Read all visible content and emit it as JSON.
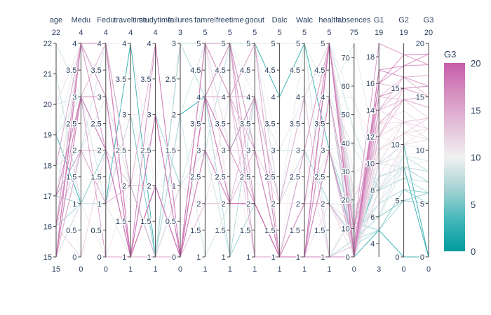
{
  "chart_data": {
    "type": "parallel_coordinates",
    "color_by": "G3",
    "colorscale": [
      "#009B9E",
      "#42B7B9",
      "#A7D3D4",
      "#F1F1F1",
      "#E4C1D9",
      "#D691C1",
      "#C75DAB"
    ],
    "colorscale_note_values": [
      0,
      20
    ],
    "colorbar": {
      "title": "G3",
      "ticks": [
        0,
        5,
        10,
        15,
        20
      ],
      "range": [
        0,
        20
      ]
    },
    "dimensions": [
      {
        "name": "age",
        "range": [
          15,
          22
        ],
        "max_label": "22",
        "min_label": "15",
        "ticks": [
          "15",
          "16",
          "17",
          "18",
          "19",
          "20",
          "21",
          "22"
        ]
      },
      {
        "name": "Medu",
        "range": [
          0,
          4
        ],
        "max_label": "4",
        "min_label": "0",
        "ticks": [
          "0",
          "0.5",
          "1",
          "1.5",
          "2",
          "2.5",
          "3",
          "3.5",
          "4"
        ]
      },
      {
        "name": "Fedu",
        "range": [
          0,
          4
        ],
        "max_label": "4",
        "min_label": "0",
        "ticks": [
          "0",
          "0.5",
          "1",
          "1.5",
          "2",
          "2.5",
          "3",
          "3.5",
          "4"
        ]
      },
      {
        "name": "traveltime",
        "range": [
          1,
          4
        ],
        "max_label": "4",
        "min_label": "1",
        "ticks": [
          "1",
          "1.5",
          "2",
          "2.5",
          "3",
          "3.5",
          "4"
        ]
      },
      {
        "name": "studytime",
        "range": [
          1,
          4
        ],
        "max_label": "4",
        "min_label": "1",
        "ticks": [
          "1",
          "1.5",
          "2",
          "2.5",
          "3",
          "3.5",
          "4"
        ]
      },
      {
        "name": "failures",
        "range": [
          0,
          3
        ],
        "max_label": "3",
        "min_label": "0",
        "ticks": [
          "0",
          "0.5",
          "1",
          "1.5",
          "2",
          "2.5",
          "3"
        ]
      },
      {
        "name": "famrel",
        "range": [
          1,
          5
        ],
        "max_label": "5",
        "min_label": "1",
        "ticks": [
          "1",
          "1.5",
          "2",
          "2.5",
          "3",
          "3.5",
          "4",
          "4.5",
          "5"
        ]
      },
      {
        "name": "freetime",
        "range": [
          1,
          5
        ],
        "max_label": "5",
        "min_label": "1",
        "ticks": [
          "1",
          "1.5",
          "2",
          "2.5",
          "3",
          "3.5",
          "4",
          "4.5",
          "5"
        ]
      },
      {
        "name": "goout",
        "range": [
          1,
          5
        ],
        "max_label": "5",
        "min_label": "1",
        "ticks": [
          "1",
          "1.5",
          "2",
          "2.5",
          "3",
          "3.5",
          "4",
          "4.5",
          "5"
        ]
      },
      {
        "name": "Dalc",
        "range": [
          1,
          5
        ],
        "max_label": "5",
        "min_label": "1",
        "ticks": [
          "1",
          "1.5",
          "2",
          "2.5",
          "3",
          "3.5",
          "4",
          "4.5",
          "5"
        ]
      },
      {
        "name": "Walc",
        "range": [
          1,
          5
        ],
        "max_label": "5",
        "min_label": "1",
        "ticks": [
          "1",
          "1.5",
          "2",
          "2.5",
          "3",
          "3.5",
          "4",
          "4.5",
          "5"
        ]
      },
      {
        "name": "health",
        "range": [
          1,
          5
        ],
        "max_label": "5",
        "min_label": "1",
        "ticks": [
          "1",
          "1.5",
          "2",
          "2.5",
          "3",
          "3.5",
          "4",
          "4.5",
          "5"
        ]
      },
      {
        "name": "absences",
        "range": [
          0,
          75
        ],
        "max_label": "75",
        "min_label": "0",
        "ticks": [
          "0",
          "10",
          "20",
          "30",
          "40",
          "50",
          "60",
          "70"
        ]
      },
      {
        "name": "G1",
        "range": [
          3,
          19
        ],
        "max_label": "19",
        "min_label": "3",
        "ticks": [
          "4",
          "6",
          "8",
          "10",
          "12",
          "14",
          "16",
          "18"
        ]
      },
      {
        "name": "G2",
        "range": [
          0,
          19
        ],
        "max_label": "19",
        "min_label": "0",
        "ticks": [
          "0",
          "5",
          "10",
          "15"
        ]
      },
      {
        "name": "G3",
        "range": [
          0,
          20
        ],
        "max_label": "20",
        "min_label": "0",
        "ticks": [
          "0",
          "5",
          "10",
          "15",
          "20"
        ]
      }
    ],
    "records": [
      [
        18,
        4,
        4,
        2,
        2,
        0,
        4,
        3,
        4,
        1,
        1,
        3,
        6,
        5,
        6,
        6
      ],
      [
        17,
        1,
        1,
        1,
        2,
        0,
        5,
        3,
        3,
        1,
        1,
        3,
        4,
        5,
        5,
        6
      ],
      [
        15,
        1,
        1,
        1,
        2,
        3,
        4,
        3,
        2,
        2,
        3,
        3,
        10,
        7,
        8,
        10
      ],
      [
        15,
        4,
        2,
        1,
        3,
        0,
        3,
        2,
        2,
        1,
        1,
        5,
        2,
        15,
        14,
        15
      ],
      [
        16,
        3,
        3,
        1,
        2,
        0,
        4,
        3,
        2,
        1,
        2,
        5,
        4,
        6,
        10,
        10
      ],
      [
        16,
        4,
        3,
        1,
        2,
        0,
        5,
        4,
        2,
        1,
        2,
        5,
        10,
        15,
        15,
        15
      ],
      [
        16,
        2,
        2,
        1,
        2,
        0,
        4,
        4,
        4,
        1,
        1,
        3,
        0,
        12,
        12,
        11
      ],
      [
        17,
        4,
        4,
        2,
        2,
        0,
        4,
        1,
        4,
        1,
        1,
        1,
        6,
        6,
        5,
        6
      ],
      [
        15,
        3,
        2,
        1,
        2,
        0,
        4,
        2,
        2,
        1,
        1,
        1,
        0,
        16,
        18,
        19
      ],
      [
        15,
        3,
        4,
        1,
        2,
        0,
        5,
        5,
        1,
        1,
        1,
        5,
        0,
        14,
        15,
        15
      ],
      [
        15,
        4,
        4,
        1,
        2,
        0,
        3,
        3,
        3,
        1,
        2,
        2,
        0,
        10,
        8,
        9
      ],
      [
        15,
        2,
        1,
        3,
        3,
        0,
        5,
        2,
        2,
        1,
        1,
        4,
        4,
        10,
        12,
        12
      ],
      [
        15,
        4,
        4,
        1,
        1,
        0,
        4,
        3,
        3,
        1,
        3,
        5,
        2,
        14,
        14,
        14
      ],
      [
        15,
        4,
        3,
        2,
        2,
        0,
        5,
        4,
        3,
        1,
        2,
        3,
        2,
        10,
        10,
        11
      ],
      [
        15,
        2,
        2,
        1,
        3,
        0,
        4,
        5,
        2,
        1,
        1,
        3,
        0,
        14,
        16,
        16
      ],
      [
        16,
        4,
        4,
        1,
        1,
        0,
        4,
        4,
        4,
        1,
        2,
        2,
        4,
        14,
        14,
        14
      ],
      [
        16,
        4,
        4,
        1,
        3,
        0,
        3,
        2,
        3,
        1,
        2,
        2,
        6,
        13,
        14,
        14
      ],
      [
        16,
        3,
        3,
        3,
        2,
        0,
        5,
        3,
        2,
        1,
        1,
        4,
        4,
        8,
        10,
        10
      ],
      [
        17,
        3,
        2,
        1,
        1,
        3,
        5,
        5,
        5,
        2,
        4,
        5,
        16,
        6,
        5,
        5
      ],
      [
        16,
        4,
        3,
        1,
        1,
        0,
        3,
        1,
        3,
        1,
        3,
        5,
        4,
        8,
        10,
        10
      ],
      [
        15,
        4,
        3,
        1,
        2,
        0,
        4,
        4,
        1,
        1,
        1,
        1,
        0,
        13,
        14,
        15
      ],
      [
        15,
        4,
        4,
        1,
        1,
        0,
        5,
        4,
        2,
        1,
        1,
        5,
        0,
        12,
        15,
        15
      ],
      [
        16,
        4,
        2,
        1,
        2,
        0,
        4,
        5,
        1,
        1,
        3,
        5,
        2,
        15,
        15,
        16
      ],
      [
        16,
        2,
        2,
        2,
        2,
        0,
        5,
        4,
        4,
        2,
        4,
        5,
        0,
        13,
        13,
        12
      ],
      [
        15,
        2,
        4,
        1,
        3,
        0,
        4,
        3,
        2,
        1,
        1,
        5,
        2,
        10,
        9,
        8
      ],
      [
        16,
        2,
        2,
        1,
        1,
        2,
        1,
        2,
        2,
        1,
        3,
        5,
        14,
        6,
        9,
        8
      ],
      [
        15,
        2,
        2,
        1,
        1,
        0,
        4,
        2,
        2,
        1,
        2,
        5,
        2,
        12,
        12,
        11
      ],
      [
        15,
        4,
        2,
        1,
        1,
        0,
        2,
        2,
        4,
        2,
        4,
        1,
        4,
        15,
        16,
        15
      ],
      [
        16,
        3,
        4,
        1,
        2,
        0,
        5,
        3,
        3,
        1,
        1,
        5,
        4,
        11,
        11,
        11
      ],
      [
        16,
        4,
        4,
        1,
        2,
        0,
        4,
        4,
        5,
        5,
        5,
        5,
        16,
        10,
        12,
        11
      ],
      [
        15,
        4,
        4,
        2,
        2,
        0,
        5,
        4,
        3,
        2,
        4,
        5,
        0,
        9,
        11,
        12
      ],
      [
        15,
        4,
        4,
        1,
        2,
        0,
        4,
        3,
        2,
        1,
        1,
        5,
        0,
        17,
        16,
        17
      ],
      [
        15,
        4,
        3,
        1,
        2,
        0,
        4,
        5,
        2,
        1,
        1,
        5,
        0,
        17,
        16,
        16
      ],
      [
        15,
        3,
        3,
        1,
        2,
        0,
        5,
        3,
        2,
        1,
        1,
        2,
        0,
        8,
        10,
        12
      ],
      [
        16,
        3,
        2,
        1,
        1,
        0,
        5,
        4,
        3,
        1,
        1,
        5,
        0,
        12,
        14,
        15
      ],
      [
        15,
        2,
        3,
        2,
        1,
        0,
        3,
        5,
        1,
        1,
        1,
        5,
        0,
        8,
        7,
        6
      ],
      [
        15,
        4,
        3,
        1,
        2,
        0,
        5,
        4,
        4,
        1,
        1,
        1,
        0,
        13,
        14,
        13
      ],
      [
        16,
        4,
        4,
        2,
        3,
        0,
        2,
        4,
        3,
        1,
        1,
        3,
        0,
        11,
        11,
        10
      ],
      [
        15,
        3,
        4,
        1,
        3,
        0,
        4,
        3,
        2,
        1,
        1,
        5,
        2,
        12,
        12,
        11
      ],
      [
        15,
        2,
        2,
        1,
        1,
        0,
        4,
        5,
        1,
        1,
        1,
        5,
        0,
        11,
        11,
        11
      ],
      [
        16,
        2,
        2,
        1,
        2,
        0,
        3,
        3,
        3,
        1,
        2,
        3,
        25,
        7,
        10,
        11
      ],
      [
        15,
        4,
        4,
        1,
        1,
        0,
        4,
        3,
        3,
        1,
        3,
        5,
        22,
        9,
        8,
        8
      ],
      [
        17,
        2,
        1,
        2,
        1,
        0,
        5,
        4,
        5,
        1,
        2,
        5,
        0,
        15,
        15,
        16
      ],
      [
        18,
        3,
        2,
        3,
        2,
        1,
        4,
        5,
        4,
        1,
        2,
        4,
        3,
        11,
        10,
        10
      ],
      [
        19,
        1,
        1,
        3,
        1,
        3,
        4,
        3,
        4,
        1,
        3,
        3,
        4,
        9,
        8,
        0
      ],
      [
        20,
        3,
        2,
        1,
        1,
        2,
        5,
        5,
        3,
        1,
        1,
        4,
        8,
        7,
        8,
        8
      ],
      [
        16,
        1,
        2,
        1,
        3,
        1,
        3,
        1,
        2,
        1,
        1,
        3,
        12,
        5,
        6,
        5
      ],
      [
        17,
        4,
        4,
        1,
        1,
        0,
        3,
        3,
        1,
        1,
        2,
        5,
        54,
        11,
        12,
        11
      ],
      [
        18,
        2,
        1,
        3,
        2,
        0,
        4,
        5,
        4,
        3,
        4,
        4,
        75,
        10,
        9,
        9
      ],
      [
        21,
        1,
        1,
        1,
        1,
        3,
        5,
        5,
        3,
        3,
        3,
        3,
        3,
        10,
        8,
        7
      ],
      [
        22,
        3,
        1,
        1,
        1,
        3,
        5,
        4,
        5,
        5,
        5,
        1,
        16,
        6,
        8,
        8
      ],
      [
        19,
        4,
        4,
        1,
        4,
        0,
        3,
        5,
        5,
        2,
        5,
        4,
        56,
        8,
        9,
        9
      ],
      [
        17,
        2,
        3,
        2,
        2,
        0,
        4,
        3,
        3,
        1,
        1,
        3,
        40,
        10,
        9,
        9
      ],
      [
        18,
        4,
        4,
        1,
        2,
        0,
        3,
        2,
        4,
        1,
        4,
        3,
        22,
        9,
        9,
        10
      ],
      [
        16,
        0,
        2,
        1,
        1,
        0,
        4,
        3,
        2,
        1,
        1,
        4,
        0,
        11,
        11,
        13
      ],
      [
        17,
        3,
        3,
        1,
        4,
        0,
        3,
        2,
        2,
        1,
        1,
        5,
        0,
        17,
        17,
        19
      ],
      [
        15,
        1,
        0,
        2,
        2,
        0,
        4,
        3,
        3,
        1,
        1,
        3,
        2,
        13,
        11,
        11
      ],
      [
        19,
        0,
        1,
        1,
        2,
        1,
        3,
        4,
        2,
        1,
        1,
        5,
        2,
        7,
        9,
        10
      ],
      [
        20,
        4,
        4,
        1,
        1,
        1,
        2,
        4,
        3,
        2,
        2,
        2,
        11,
        12,
        12,
        12
      ],
      [
        18,
        4,
        4,
        2,
        4,
        0,
        4,
        2,
        2,
        1,
        2,
        5,
        8,
        16,
        15,
        16
      ],
      [
        17,
        4,
        4,
        4,
        2,
        0,
        4,
        4,
        4,
        3,
        4,
        5,
        28,
        12,
        10,
        11
      ],
      [
        16,
        3,
        0,
        1,
        3,
        0,
        4,
        3,
        4,
        1,
        1,
        3,
        4,
        16,
        17,
        18
      ],
      [
        15,
        1,
        1,
        4,
        1,
        2,
        4,
        5,
        5,
        4,
        5,
        3,
        0,
        5,
        0,
        0
      ],
      [
        18,
        2,
        2,
        1,
        2,
        1,
        4,
        3,
        4,
        2,
        3,
        2,
        18,
        8,
        8,
        7
      ],
      [
        17,
        2,
        2,
        1,
        1,
        0,
        4,
        3,
        3,
        1,
        1,
        4,
        0,
        10,
        10,
        0
      ],
      [
        16,
        4,
        4,
        1,
        2,
        0,
        4,
        4,
        5,
        1,
        2,
        5,
        20,
        13,
        12,
        13
      ],
      [
        19,
        3,
        3,
        2,
        1,
        1,
        4,
        2,
        2,
        1,
        2,
        4,
        38,
        8,
        9,
        8
      ],
      [
        18,
        1,
        1,
        1,
        2,
        1,
        4,
        4,
        3,
        1,
        1,
        5,
        6,
        9,
        8,
        8
      ],
      [
        17,
        3,
        2,
        2,
        2,
        0,
        3,
        2,
        3,
        1,
        2,
        5,
        12,
        14,
        12,
        13
      ],
      [
        16,
        2,
        3,
        1,
        2,
        0,
        2,
        3,
        5,
        3,
        4,
        4,
        30,
        10,
        10,
        10
      ],
      [
        15,
        4,
        4,
        1,
        3,
        0,
        5,
        5,
        3,
        1,
        1,
        4,
        10,
        19,
        18,
        18
      ],
      [
        17,
        1,
        2,
        2,
        1,
        1,
        4,
        4,
        4,
        2,
        3,
        2,
        7,
        7,
        6,
        6
      ],
      [
        18,
        4,
        3,
        1,
        2,
        0,
        5,
        4,
        5,
        2,
        3,
        1,
        14,
        11,
        11,
        12
      ],
      [
        16,
        2,
        1,
        3,
        1,
        1,
        3,
        3,
        4,
        1,
        2,
        5,
        44,
        8,
        7,
        7
      ]
    ]
  }
}
